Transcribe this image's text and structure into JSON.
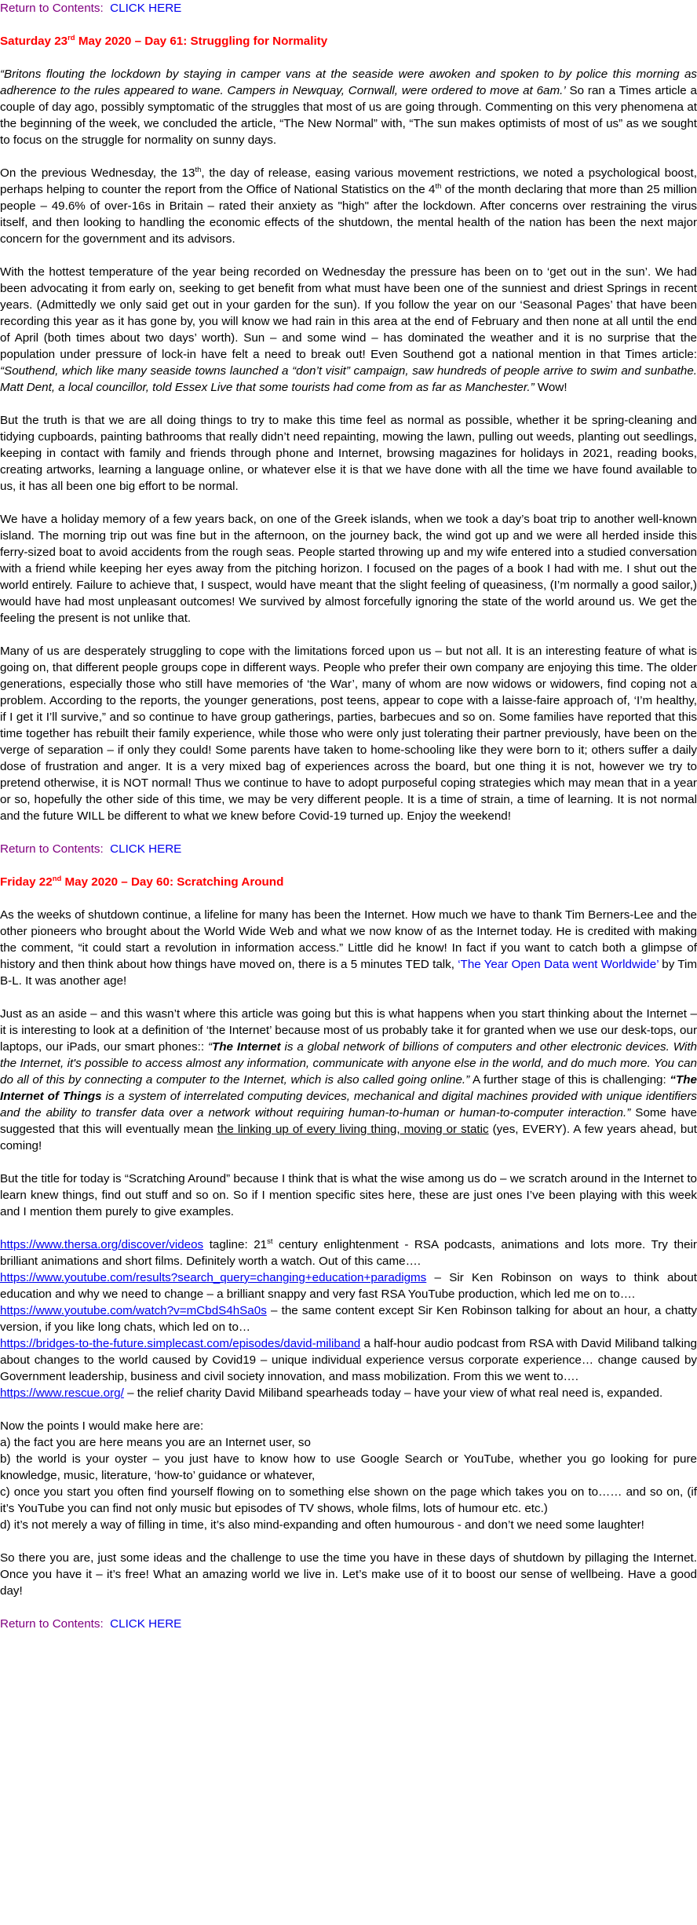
{
  "nav": {
    "return_label": "Return to Contents:",
    "click_here": "CLICK HERE"
  },
  "day61": {
    "title_a": "Saturday 23",
    "title_sup": "rd",
    "title_b": " May 2020 – Day 61: Struggling for Normality",
    "p1_italic": "“Britons flouting the lockdown by staying in camper vans at the seaside were awoken and spoken to by police this morning as adherence to the rules appeared to wane. Campers in Newquay, Cornwall, were ordered to move at 6am.’",
    "p1_rest": " So ran a Times article a couple of day ago, possibly symptomatic of the struggles that most of us are going through. Commenting on this very phenomena at the beginning of the week, we concluded the article, “The New Normal” with, “The sun makes optimists of most of us” as we sought to focus on the struggle for normality on sunny days.",
    "p2_a": "On the previous Wednesday, the 13",
    "p2_sup1": "th",
    "p2_b": ", the day of release, easing various movement restrictions, we noted a psychological boost, perhaps helping to counter the report from the Office of National Statistics on the 4",
    "p2_sup2": "th",
    "p2_c": " of the month declaring that more than 25 million people – 49.6% of over-16s in Britain – rated their anxiety as \"high\" after the lockdown. After concerns over restraining the virus itself, and then looking to handling the economic effects of the shutdown, the mental health of the nation has been the next major concern for the government and its advisors.",
    "p3_a": "With the hottest temperature of the year being recorded on Wednesday the pressure has been on to ‘get out in the sun’. We had been advocating it from early on, seeking to get benefit from what must have been one of the sunniest and driest Springs in recent years. (Admittedly we only said get out in your garden for the sun). If you follow the year on our ‘Seasonal Pages’ that have been recording this year as it has gone by, you will know we had rain in this area at the end of February and then none at all until the end of April (both times about two days’ worth). Sun – and some wind – has dominated the weather and it is no surprise that the population under pressure of lock-in have felt a need to break out!  Even Southend got a national mention in that Times article: ",
    "p3_italic": "“Southend, which like many seaside towns launched a “don’t visit” campaign, saw hundreds of people arrive to swim and sunbathe. Matt Dent, a local councillor, told Essex Live that some tourists had come from as far as Manchester.”",
    "p3_end": " Wow!",
    "p4": "But the truth is that we are all doing things to try to make this time feel as normal as possible, whether it be spring-cleaning and tidying cupboards, painting bathrooms that really didn’t need repainting, mowing the lawn, pulling out weeds, planting out seedlings, keeping in contact with family and friends through phone and Internet, browsing magazines for holidays in 2021, reading books, creating artworks, learning a language online, or whatever else it is that we have done with all the time we have found available to us, it has all been one big effort to be normal.",
    "p5": "We have a holiday memory of a few years back, on one of the Greek islands, when we took a day’s boat trip to another well-known island. The morning trip out was fine but in the afternoon, on the journey back, the wind got up and we were all herded inside this ferry-sized boat to avoid accidents from the rough seas. People started throwing up and my wife entered into a studied conversation with a friend while keeping her eyes away from the pitching horizon.  I focused on the pages of a book I had with me. I shut out the world entirely. Failure to achieve that, I suspect, would have meant that the slight feeling of queasiness, (I’m normally a good sailor,) would have had most unpleasant outcomes! We survived by almost forcefully ignoring the state of the world around us. We get the feeling the present is not unlike that.",
    "p6": "Many of us are desperately struggling to cope with the limitations forced upon us – but not all. It is an interesting feature of what is going on, that different people groups cope in different ways. People who prefer their own company are enjoying this time. The older generations, especially those who still have memories of ‘the War’, many of whom are now widows or widowers, find coping not a problem. According to the reports, the younger generations, post teens, appear to cope with a laisse-faire approach of, ‘I’m healthy, if I get it I’ll survive,” and so continue to have group gatherings, parties, barbecues and so on. Some families have reported that this time together has rebuilt their family experience, while those who were only just tolerating their partner previously, have been on the verge of separation – if only they could!  Some parents have taken to home-schooling like they were born to it; others suffer a daily dose of frustration and anger. It is a very mixed bag of experiences across the board, but one thing it is not, however we try to pretend otherwise, it is NOT normal! Thus we continue to have to adopt purposeful coping strategies which may mean that in a year or so, hopefully the other side of this time, we may be very different people. It is a time of strain, a time of learning. It is not normal and the future WILL be different to what we knew before Covid-19 turned up. Enjoy the weekend!"
  },
  "day60": {
    "title_a": "Friday 22",
    "title_sup": "nd",
    "title_b": " May 2020 – Day 60: Scratching Around",
    "p1_a": "As the weeks of shutdown continue, a lifeline for many has been the Internet. How much we have to thank Tim Berners-Lee and the other pioneers who brought about the World Wide Web and what we now know of as the Internet today. He is credited with making the comment, “it could start a revolution in information access.” Little did he know! In fact if you want to catch both a glimpse of history and then think about how things have moved on, there is a 5 minutes TED talk, ",
    "p1_link": "‘The Year Open Data went Worldwide’",
    "p1_b": " by Tim B-L. It was another age!",
    "p2_a": "Just as an aside – and this wasn’t where this article was going but this is what happens when you start thinking about the Internet – it is interesting to look at a definition of ‘the Internet’ because most of us probably take it for granted when we use our desk-tops, our laptops, our iPads, our smart phones:: ",
    "p2_i1": "“",
    "p2_bi1": "The Internet",
    "p2_i2": " is a global network of billions of computers and other electronic devices. With the Internet, it's possible to access almost any information, communicate with anyone else in the world, and do much more. You can do all of this by connecting a computer to the Internet, which is also called going online.”",
    "p2_b": " A further stage of this is challenging: ",
    "p2_bi2": "“The Internet of Things",
    "p2_i3": " is a system of interrelated computing devices, mechanical and digital machines provided with unique identifiers and the ability to transfer data over a network without requiring human-to-human or human-to-computer interaction.”",
    "p2_c": " Some have suggested that this will eventually mean ",
    "p2_u": "the linking up of every living thing, moving or static",
    "p2_d": " (yes, EVERY). A few years ahead, but coming!",
    "p3": "But the title for today is “Scratching Around” because I think that is what the wise among us do – we scratch around in the Internet to learn knew things, find out stuff and so on. So if I mention specific sites here, these are just ones I’ve been playing with this week and I mention them purely to give examples.",
    "links": [
      {
        "url": "https://www.thersa.org/discover/videos",
        "pre_sup": "  tagline: 21",
        "sup": "st",
        "text": " century enlightenment - RSA  podcasts, animations and lots more. Try their brilliant animations and short films. Definitely worth a watch. Out of this came…."
      },
      {
        "url": "https://www.youtube.com/results?search_query=changing+education+paradigms",
        "text": " – Sir Ken Robinson on ways to think about education and why we need to change – a brilliant snappy and very fast RSA YouTube production, which led me on to…."
      },
      {
        "url": "https://www.youtube.com/watch?v=mCbdS4hSa0s",
        "text": " – the same content except Sir Ken Robinson talking for about an hour, a chatty version, if you like long chats, which led on to…"
      },
      {
        "url": "https://bridges-to-the-future.simplecast.com/episodes/david-miliband",
        "text": " a half-hour audio podcast from RSA with David Miliband talking about changes to the world caused by Covid19 – unique individual experience versus corporate experience… change caused by Government leadership, business and civil society innovation, and mass mobilization. From this we went to…."
      },
      {
        "url": "https://www.rescue.org/",
        "text": "  – the relief charity David Miliband spearheads today – have your view of what real need is, expanded."
      }
    ],
    "points_intro": "Now the points I would make here are:",
    "points": [
      "a) the fact you are here means you are an Internet user, so",
      "b) the world is your oyster – you just have to know how to use Google Search or YouTube, whether you go looking for pure knowledge, music, literature, ‘how-to’ guidance or whatever,",
      "c) once you start you often find yourself flowing on to something else shown on the page which takes you on to…… and so on, (if it’s YouTube you can find not only music but episodes of TV shows, whole films, lots of humour etc. etc.)",
      "d) it’s not merely a way of filling in time, it’s also mind-expanding and often humourous - and don’t we need some laughter!"
    ],
    "closing": "So there you are, just some ideas and the challenge to use the time you have in these days of shutdown by pillaging the Internet. Once you have it – it’s free! What an amazing world we live in. Let’s make use of it to boost our sense of wellbeing. Have a good day!"
  }
}
